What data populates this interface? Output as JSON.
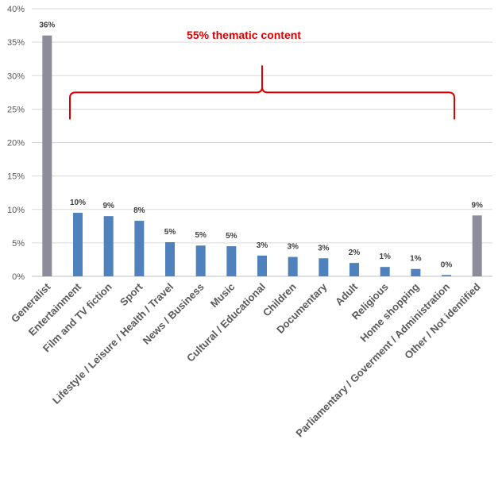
{
  "chart_data": {
    "type": "bar",
    "categories": [
      "Generalist",
      "Entertainment",
      "Film and TV fiction",
      "Sport",
      "Lifestyle / Leisure / Health / Travel",
      "News / Business",
      "Music",
      "Cultural / Educational",
      "Children",
      "Documentary",
      "Adult",
      "Religious",
      "Home shopping",
      "Parliamentary / Goverment / Administration",
      "Other / Not identified"
    ],
    "values": [
      36,
      9.5,
      9,
      8.3,
      5.1,
      4.6,
      4.5,
      3.1,
      2.9,
      2.7,
      2.0,
      1.4,
      1.1,
      0.2,
      9.1
    ],
    "data_labels": [
      "36%",
      "10%",
      "9%",
      "8%",
      "5%",
      "5%",
      "5%",
      "3%",
      "3%",
      "3%",
      "2%",
      "1%",
      "1%",
      "0%",
      "9%"
    ],
    "bar_colors": [
      "#8c8c9a",
      "#4f81bd",
      "#4f81bd",
      "#4f81bd",
      "#4f81bd",
      "#4f81bd",
      "#4f81bd",
      "#4f81bd",
      "#4f81bd",
      "#4f81bd",
      "#4f81bd",
      "#4f81bd",
      "#4f81bd",
      "#4f81bd",
      "#8c8c9a"
    ],
    "ylim": [
      0,
      40
    ],
    "yticks": [
      "0%",
      "5%",
      "10%",
      "15%",
      "20%",
      "25%",
      "30%",
      "35%",
      "40%"
    ],
    "grid": true,
    "legend": "none",
    "annotation": {
      "text": "55% thematic content",
      "color": "#dd0000",
      "from_category": 1,
      "to_category": 13,
      "level": 27.5
    }
  }
}
